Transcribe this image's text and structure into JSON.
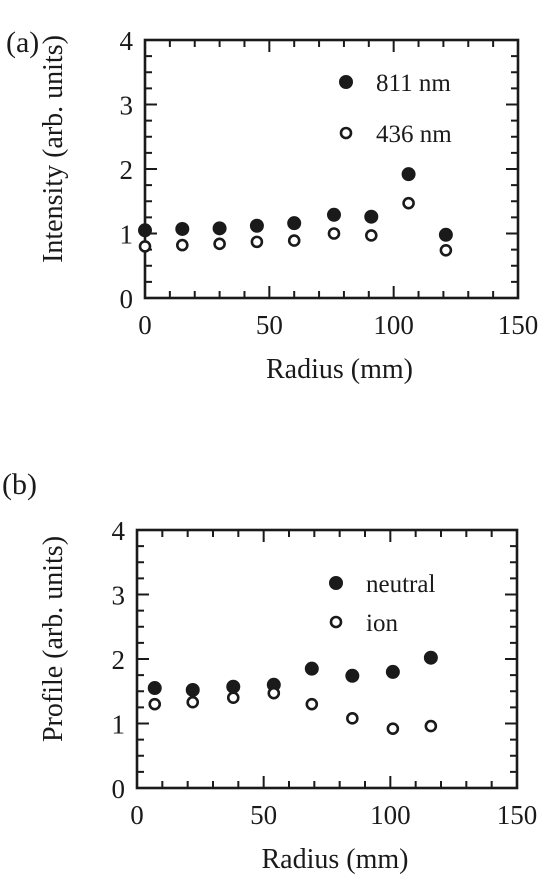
{
  "chart_data": [
    {
      "type": "scatter",
      "panel_label": "(a)",
      "xlabel": "Radius (mm)",
      "ylabel": "Intensity (arb. units)",
      "xlim": [
        0,
        150
      ],
      "ylim": [
        0,
        4
      ],
      "x_ticks": [
        0,
        50,
        100,
        150
      ],
      "y_ticks": [
        0,
        1,
        2,
        3,
        4
      ],
      "grid": false,
      "legend_position": "top-right",
      "series": [
        {
          "name": "811 nm",
          "marker": "filled-circle",
          "x": [
            0,
            15,
            30,
            45,
            60,
            76,
            91,
            106,
            121
          ],
          "y": [
            1.05,
            1.07,
            1.08,
            1.12,
            1.16,
            1.29,
            1.26,
            1.92,
            0.98
          ]
        },
        {
          "name": "436 nm",
          "marker": "open-circle",
          "x": [
            0,
            15,
            30,
            45,
            60,
            76,
            91,
            106,
            121
          ],
          "y": [
            0.8,
            0.82,
            0.84,
            0.87,
            0.89,
            1.0,
            0.97,
            1.47,
            0.74
          ]
        }
      ]
    },
    {
      "type": "scatter",
      "panel_label": "(b)",
      "xlabel": "Radius (mm)",
      "ylabel": "Profile (arb. units)",
      "xlim": [
        0,
        150
      ],
      "ylim": [
        0,
        4
      ],
      "x_ticks": [
        0,
        50,
        100,
        150
      ],
      "y_ticks": [
        0,
        1,
        2,
        3,
        4
      ],
      "grid": false,
      "legend_position": "top-right",
      "series": [
        {
          "name": "neutral",
          "marker": "filled-circle",
          "x": [
            7,
            22,
            38,
            54,
            69,
            85,
            101,
            116
          ],
          "y": [
            1.55,
            1.52,
            1.57,
            1.6,
            1.85,
            1.74,
            1.8,
            2.02
          ]
        },
        {
          "name": "ion",
          "marker": "open-circle",
          "x": [
            7,
            22,
            38,
            54,
            69,
            85,
            101,
            116
          ],
          "y": [
            1.3,
            1.33,
            1.4,
            1.47,
            1.3,
            1.08,
            0.92,
            0.96
          ]
        }
      ]
    }
  ]
}
